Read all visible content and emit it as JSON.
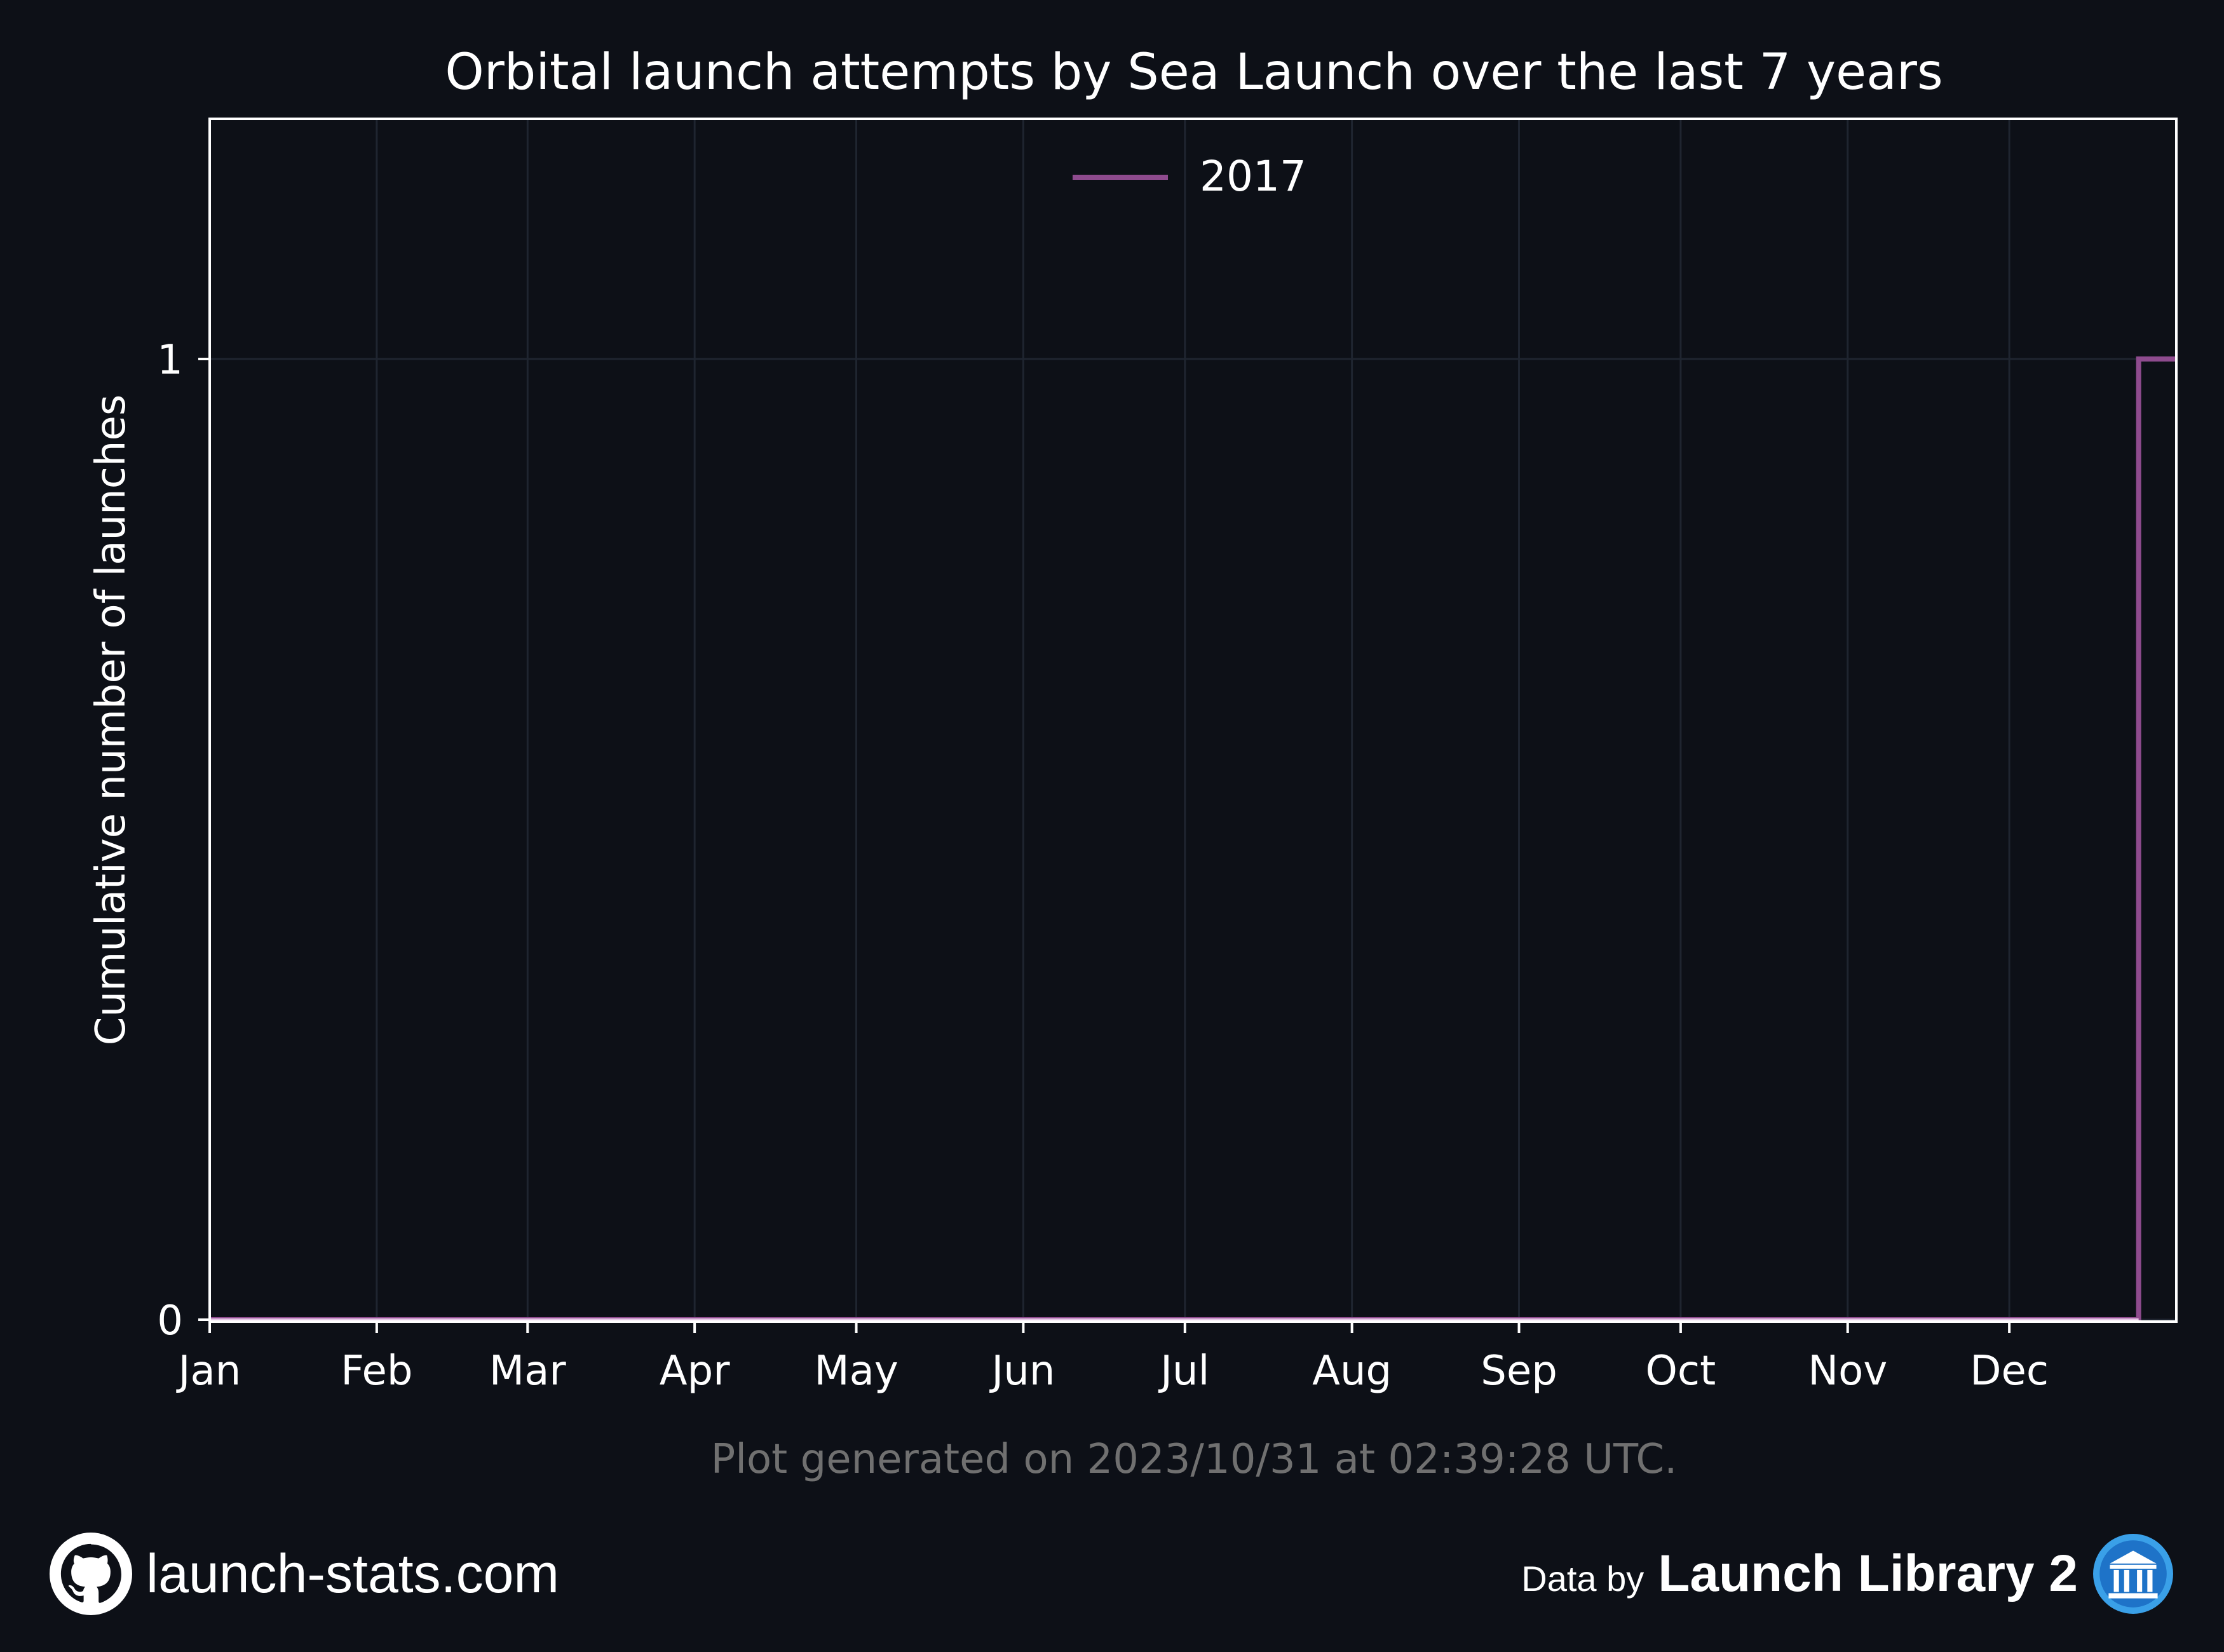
{
  "chart_data": {
    "type": "line",
    "title": "Orbital launch attempts by Sea Launch over the last 7 years",
    "xlabel": "",
    "ylabel": "Cumulative number of launches",
    "x_tick_labels": [
      "Jan",
      "Feb",
      "Mar",
      "Apr",
      "May",
      "Jun",
      "Jul",
      "Aug",
      "Sep",
      "Oct",
      "Nov",
      "Dec"
    ],
    "x_tick_days": [
      0,
      31,
      59,
      90,
      120,
      151,
      181,
      212,
      243,
      273,
      304,
      334
    ],
    "xlim_days": [
      0,
      365
    ],
    "y_ticks": [
      0,
      1
    ],
    "ylim": [
      -0.002,
      1.25
    ],
    "grid": true,
    "legend_position": "top-center",
    "step": true,
    "series": [
      {
        "name": "2017",
        "color": "#8e4b8e",
        "x_days": [
          0,
          358,
          365
        ],
        "y": [
          0,
          1,
          1
        ]
      }
    ],
    "colors": {
      "background": "#0d1017",
      "grid": "#1f2530",
      "text": "#ffffff",
      "zero_line": "#e7c8e7"
    }
  },
  "footer": {
    "generated_text": "Plot generated on 2023/10/31 at 02:39:28 UTC.",
    "site": "launch-stats.com",
    "data_by": "Data by",
    "source_name": "Launch Library 2",
    "site_icon": "github-icon",
    "source_icon": "launch-library-logo-icon"
  }
}
